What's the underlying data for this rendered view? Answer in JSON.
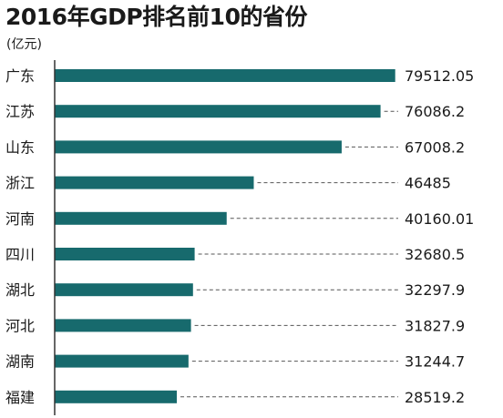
{
  "title": "2016年GDP排名前10的省份",
  "unit": "(亿元)",
  "colors": {
    "bar": "#176a6d",
    "axis": "#333333",
    "leader": "#555555",
    "text": "#1a1a1a"
  },
  "chart_data": {
    "type": "bar",
    "orientation": "horizontal",
    "title": "2016年GDP排名前10的省份",
    "unit": "(亿元)",
    "categories": [
      "广东",
      "江苏",
      "山东",
      "浙江",
      "河南",
      "四川",
      "湖北",
      "河北",
      "湖南",
      "福建"
    ],
    "labels": [
      "79512.05",
      "76086.2",
      "67008.2",
      "46485",
      "40160.01",
      "32680.5",
      "32297.9",
      "31827.9",
      "31244.7",
      "28519.2"
    ],
    "values": [
      79512.05,
      76086.2,
      67008.2,
      46485,
      40160.01,
      32680.5,
      32297.9,
      31827.9,
      31244.7,
      28519.2
    ],
    "xlim": [
      0,
      80000
    ],
    "grid": false,
    "legend": "none"
  }
}
